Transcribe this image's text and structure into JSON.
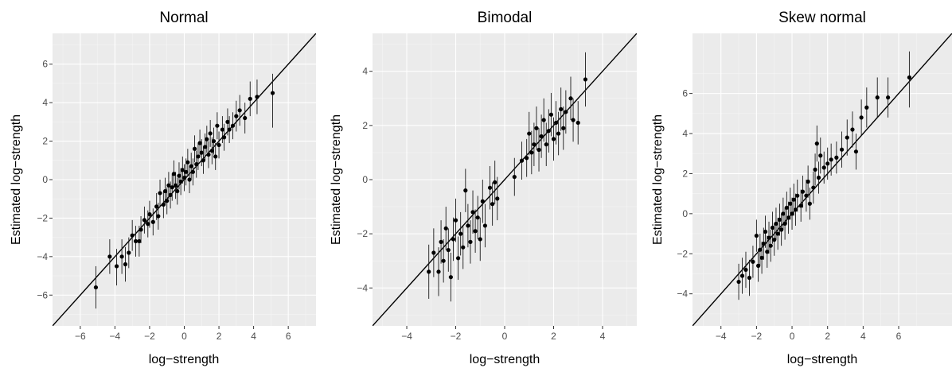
{
  "colors": {
    "panel_bg": "#ebebeb",
    "grid_major": "#ffffff",
    "grid_minor": "#f5f5f5",
    "points": "#000000",
    "errorbars": "#1a1a1a",
    "tick_text": "#4d4d4d"
  },
  "chart_data": [
    {
      "type": "scatter",
      "title": "Normal",
      "xlabel": "log−strength",
      "ylabel": "Estimated log−strength",
      "xlim": [
        -7.6,
        7.6
      ],
      "ylim": [
        -7.6,
        7.6
      ],
      "xticks": [
        -6,
        -4,
        -2,
        0,
        2,
        4,
        6
      ],
      "yticks": [
        -6,
        -4,
        -2,
        0,
        2,
        4,
        6
      ],
      "xtick_labels": [
        "−6",
        "−4",
        "−2",
        "0",
        "2",
        "4",
        "6"
      ],
      "ytick_labels": [
        "−6",
        "−4",
        "−2",
        "0",
        "2",
        "4",
        "6"
      ],
      "reference_line": "y = x",
      "grid": true,
      "points": [
        {
          "x": -5.1,
          "y": -5.6,
          "lo": -6.7,
          "hi": -4.5
        },
        {
          "x": -4.3,
          "y": -4.0,
          "lo": -4.9,
          "hi": -3.1
        },
        {
          "x": -3.9,
          "y": -4.5,
          "lo": -5.5,
          "hi": -3.6
        },
        {
          "x": -3.6,
          "y": -4.0,
          "lo": -4.9,
          "hi": -3.1
        },
        {
          "x": -3.4,
          "y": -4.4,
          "lo": -5.3,
          "hi": -3.5
        },
        {
          "x": -3.2,
          "y": -3.8,
          "lo": -4.6,
          "hi": -3.0
        },
        {
          "x": -3.0,
          "y": -2.9,
          "lo": -3.7,
          "hi": -2.1
        },
        {
          "x": -2.8,
          "y": -3.2,
          "lo": -4.0,
          "hi": -2.4
        },
        {
          "x": -2.6,
          "y": -3.2,
          "lo": -4.0,
          "hi": -2.4
        },
        {
          "x": -2.5,
          "y": -2.6,
          "lo": -3.3,
          "hi": -1.9
        },
        {
          "x": -2.3,
          "y": -2.1,
          "lo": -2.8,
          "hi": -1.4
        },
        {
          "x": -2.1,
          "y": -2.3,
          "lo": -3.0,
          "hi": -1.6
        },
        {
          "x": -2.0,
          "y": -1.8,
          "lo": -2.5,
          "hi": -1.1
        },
        {
          "x": -1.8,
          "y": -2.2,
          "lo": -2.9,
          "hi": -1.5
        },
        {
          "x": -1.6,
          "y": -1.4,
          "lo": -2.1,
          "hi": -0.7
        },
        {
          "x": -1.5,
          "y": -1.9,
          "lo": -2.6,
          "hi": -1.2
        },
        {
          "x": -1.4,
          "y": -0.7,
          "lo": -1.4,
          "hi": 0.0
        },
        {
          "x": -1.2,
          "y": -1.3,
          "lo": -2.0,
          "hi": -0.6
        },
        {
          "x": -1.1,
          "y": -0.6,
          "lo": -1.3,
          "hi": 0.1
        },
        {
          "x": -1.0,
          "y": -1.1,
          "lo": -1.8,
          "hi": -0.4
        },
        {
          "x": -0.9,
          "y": -0.3,
          "lo": -1.0,
          "hi": 0.4
        },
        {
          "x": -0.8,
          "y": -0.8,
          "lo": -1.5,
          "hi": -0.1
        },
        {
          "x": -0.7,
          "y": -0.4,
          "lo": -1.1,
          "hi": 0.3
        },
        {
          "x": -0.6,
          "y": 0.3,
          "lo": -0.4,
          "hi": 1.0
        },
        {
          "x": -0.5,
          "y": -0.3,
          "lo": -1.0,
          "hi": 0.4
        },
        {
          "x": -0.4,
          "y": -0.6,
          "lo": -1.3,
          "hi": 0.1
        },
        {
          "x": -0.3,
          "y": 0.2,
          "lo": -0.5,
          "hi": 0.9
        },
        {
          "x": -0.2,
          "y": -0.1,
          "lo": -0.8,
          "hi": 0.6
        },
        {
          "x": -0.1,
          "y": 0.5,
          "lo": -0.2,
          "hi": 1.2
        },
        {
          "x": 0.0,
          "y": 0.1,
          "lo": -0.6,
          "hi": 0.8
        },
        {
          "x": 0.1,
          "y": 0.4,
          "lo": -0.3,
          "hi": 1.1
        },
        {
          "x": 0.2,
          "y": 0.9,
          "lo": 0.2,
          "hi": 1.6
        },
        {
          "x": 0.3,
          "y": 0.0,
          "lo": -0.7,
          "hi": 0.7
        },
        {
          "x": 0.4,
          "y": 0.7,
          "lo": 0.0,
          "hi": 1.4
        },
        {
          "x": 0.5,
          "y": 0.4,
          "lo": -0.3,
          "hi": 1.1
        },
        {
          "x": 0.6,
          "y": 1.6,
          "lo": 0.9,
          "hi": 2.3
        },
        {
          "x": 0.7,
          "y": 0.8,
          "lo": 0.1,
          "hi": 1.5
        },
        {
          "x": 0.8,
          "y": 1.2,
          "lo": 0.5,
          "hi": 1.9
        },
        {
          "x": 0.9,
          "y": 1.9,
          "lo": 1.2,
          "hi": 2.6
        },
        {
          "x": 1.0,
          "y": 1.4,
          "lo": 0.7,
          "hi": 2.1
        },
        {
          "x": 1.1,
          "y": 1.0,
          "lo": 0.3,
          "hi": 1.7
        },
        {
          "x": 1.2,
          "y": 1.7,
          "lo": 1.0,
          "hi": 2.4
        },
        {
          "x": 1.3,
          "y": 2.1,
          "lo": 1.4,
          "hi": 2.8
        },
        {
          "x": 1.4,
          "y": 1.3,
          "lo": 0.6,
          "hi": 2.0
        },
        {
          "x": 1.5,
          "y": 2.4,
          "lo": 1.7,
          "hi": 3.1
        },
        {
          "x": 1.6,
          "y": 1.5,
          "lo": 0.8,
          "hi": 2.2
        },
        {
          "x": 1.7,
          "y": 2.0,
          "lo": 1.3,
          "hi": 2.7
        },
        {
          "x": 1.8,
          "y": 1.2,
          "lo": 0.5,
          "hi": 1.9
        },
        {
          "x": 1.9,
          "y": 2.8,
          "lo": 2.1,
          "hi": 3.5
        },
        {
          "x": 2.0,
          "y": 1.8,
          "lo": 1.1,
          "hi": 2.5
        },
        {
          "x": 2.2,
          "y": 2.6,
          "lo": 1.9,
          "hi": 3.3
        },
        {
          "x": 2.3,
          "y": 2.2,
          "lo": 1.5,
          "hi": 2.9
        },
        {
          "x": 2.5,
          "y": 3.0,
          "lo": 2.3,
          "hi": 3.7
        },
        {
          "x": 2.6,
          "y": 2.6,
          "lo": 1.9,
          "hi": 3.3
        },
        {
          "x": 2.8,
          "y": 2.8,
          "lo": 2.1,
          "hi": 3.5
        },
        {
          "x": 3.0,
          "y": 3.3,
          "lo": 2.5,
          "hi": 4.1
        },
        {
          "x": 3.2,
          "y": 3.6,
          "lo": 2.8,
          "hi": 4.4
        },
        {
          "x": 3.5,
          "y": 3.2,
          "lo": 2.4,
          "hi": 4.0
        },
        {
          "x": 3.8,
          "y": 4.2,
          "lo": 3.3,
          "hi": 5.1
        },
        {
          "x": 4.2,
          "y": 4.3,
          "lo": 3.4,
          "hi": 5.2
        },
        {
          "x": 5.1,
          "y": 4.5,
          "lo": 2.7,
          "hi": 5.5
        }
      ]
    },
    {
      "type": "scatter",
      "title": "Bimodal",
      "xlabel": "log−strength",
      "ylabel": "Estimated log−strength",
      "xlim": [
        -5.4,
        5.4
      ],
      "ylim": [
        -5.4,
        5.4
      ],
      "xticks": [
        -4,
        -2,
        0,
        2,
        4
      ],
      "yticks": [
        -4,
        -2,
        0,
        2,
        4
      ],
      "xtick_labels": [
        "−4",
        "−2",
        "0",
        "2",
        "4"
      ],
      "ytick_labels": [
        "−4",
        "−2",
        "0",
        "2",
        "4"
      ],
      "reference_line": "y = x",
      "grid": true,
      "points": [
        {
          "x": -3.1,
          "y": -3.4,
          "lo": -4.4,
          "hi": -2.4
        },
        {
          "x": -2.9,
          "y": -2.7,
          "lo": -3.6,
          "hi": -1.8
        },
        {
          "x": -2.7,
          "y": -3.4,
          "lo": -4.3,
          "hi": -2.5
        },
        {
          "x": -2.6,
          "y": -2.3,
          "lo": -3.1,
          "hi": -1.5
        },
        {
          "x": -2.5,
          "y": -3.0,
          "lo": -3.8,
          "hi": -2.2
        },
        {
          "x": -2.4,
          "y": -1.8,
          "lo": -2.6,
          "hi": -1.0
        },
        {
          "x": -2.3,
          "y": -2.6,
          "lo": -3.4,
          "hi": -1.8
        },
        {
          "x": -2.2,
          "y": -3.6,
          "lo": -4.5,
          "hi": -2.7
        },
        {
          "x": -2.1,
          "y": -2.2,
          "lo": -3.0,
          "hi": -1.4
        },
        {
          "x": -2.0,
          "y": -1.5,
          "lo": -2.3,
          "hi": -0.7
        },
        {
          "x": -1.9,
          "y": -2.9,
          "lo": -3.7,
          "hi": -2.1
        },
        {
          "x": -1.8,
          "y": -2.0,
          "lo": -2.8,
          "hi": -1.2
        },
        {
          "x": -1.7,
          "y": -2.5,
          "lo": -3.3,
          "hi": -1.7
        },
        {
          "x": -1.6,
          "y": -0.4,
          "lo": -1.2,
          "hi": 0.4
        },
        {
          "x": -1.5,
          "y": -1.7,
          "lo": -2.5,
          "hi": -0.9
        },
        {
          "x": -1.4,
          "y": -2.3,
          "lo": -3.1,
          "hi": -1.5
        },
        {
          "x": -1.3,
          "y": -1.2,
          "lo": -2.0,
          "hi": -0.4
        },
        {
          "x": -1.2,
          "y": -1.9,
          "lo": -2.7,
          "hi": -1.1
        },
        {
          "x": -1.1,
          "y": -1.4,
          "lo": -2.2,
          "hi": -0.6
        },
        {
          "x": -1.0,
          "y": -2.2,
          "lo": -3.0,
          "hi": -1.4
        },
        {
          "x": -0.9,
          "y": -0.8,
          "lo": -1.6,
          "hi": 0.0
        },
        {
          "x": -0.8,
          "y": -1.7,
          "lo": -2.5,
          "hi": -0.9
        },
        {
          "x": -0.6,
          "y": -0.3,
          "lo": -1.1,
          "hi": 0.5
        },
        {
          "x": -0.5,
          "y": -0.9,
          "lo": -1.7,
          "hi": -0.1
        },
        {
          "x": -0.4,
          "y": -0.1,
          "lo": -0.9,
          "hi": 0.7
        },
        {
          "x": -0.3,
          "y": -0.7,
          "lo": -1.5,
          "hi": 0.1
        },
        {
          "x": 0.4,
          "y": 0.1,
          "lo": -0.6,
          "hi": 0.8
        },
        {
          "x": 0.7,
          "y": 0.7,
          "lo": 0.0,
          "hi": 1.4
        },
        {
          "x": 0.9,
          "y": 0.8,
          "lo": 0.1,
          "hi": 1.5
        },
        {
          "x": 1.0,
          "y": 1.7,
          "lo": 0.9,
          "hi": 2.5
        },
        {
          "x": 1.1,
          "y": 1.0,
          "lo": 0.2,
          "hi": 1.8
        },
        {
          "x": 1.2,
          "y": 1.3,
          "lo": 0.5,
          "hi": 2.1
        },
        {
          "x": 1.3,
          "y": 1.9,
          "lo": 1.1,
          "hi": 2.7
        },
        {
          "x": 1.4,
          "y": 1.1,
          "lo": 0.3,
          "hi": 1.9
        },
        {
          "x": 1.5,
          "y": 1.6,
          "lo": 0.8,
          "hi": 2.4
        },
        {
          "x": 1.6,
          "y": 2.2,
          "lo": 1.4,
          "hi": 3.0
        },
        {
          "x": 1.7,
          "y": 1.3,
          "lo": 0.5,
          "hi": 2.1
        },
        {
          "x": 1.8,
          "y": 1.8,
          "lo": 1.0,
          "hi": 2.6
        },
        {
          "x": 1.9,
          "y": 2.4,
          "lo": 1.6,
          "hi": 3.2
        },
        {
          "x": 2.0,
          "y": 1.5,
          "lo": 0.7,
          "hi": 2.3
        },
        {
          "x": 2.1,
          "y": 2.1,
          "lo": 1.3,
          "hi": 2.9
        },
        {
          "x": 2.2,
          "y": 1.7,
          "lo": 0.9,
          "hi": 2.5
        },
        {
          "x": 2.3,
          "y": 2.6,
          "lo": 1.8,
          "hi": 3.4
        },
        {
          "x": 2.4,
          "y": 1.9,
          "lo": 1.1,
          "hi": 2.7
        },
        {
          "x": 2.5,
          "y": 2.5,
          "lo": 1.7,
          "hi": 3.3
        },
        {
          "x": 2.7,
          "y": 3.0,
          "lo": 2.2,
          "hi": 3.8
        },
        {
          "x": 2.8,
          "y": 2.2,
          "lo": 1.4,
          "hi": 3.0
        },
        {
          "x": 3.0,
          "y": 2.1,
          "lo": 1.3,
          "hi": 2.9
        },
        {
          "x": 3.3,
          "y": 3.7,
          "lo": 2.7,
          "hi": 4.7
        }
      ]
    },
    {
      "type": "scatter",
      "title": "Skew normal",
      "xlabel": "log−strength",
      "ylabel": "Estimated log−strength",
      "xlim": [
        -5.6,
        9.0
      ],
      "ylim": [
        -5.6,
        9.0
      ],
      "xticks": [
        -4,
        -2,
        0,
        2,
        4,
        6
      ],
      "yticks": [
        -4,
        -2,
        0,
        2,
        4,
        6
      ],
      "xtick_labels": [
        "−4",
        "−2",
        "0",
        "2",
        "4",
        "6"
      ],
      "ytick_labels": [
        "−4",
        "−2",
        "0",
        "2",
        "4",
        "6"
      ],
      "reference_line": "y = x",
      "grid": true,
      "points": [
        {
          "x": -3.0,
          "y": -3.4,
          "lo": -4.3,
          "hi": -2.5
        },
        {
          "x": -2.8,
          "y": -3.1,
          "lo": -4.0,
          "hi": -2.2
        },
        {
          "x": -2.6,
          "y": -2.8,
          "lo": -3.7,
          "hi": -1.9
        },
        {
          "x": -2.4,
          "y": -3.2,
          "lo": -4.1,
          "hi": -2.3
        },
        {
          "x": -2.2,
          "y": -2.4,
          "lo": -3.2,
          "hi": -1.6
        },
        {
          "x": -2.0,
          "y": -1.1,
          "lo": -1.9,
          "hi": -0.3
        },
        {
          "x": -1.9,
          "y": -2.6,
          "lo": -3.4,
          "hi": -1.8
        },
        {
          "x": -1.8,
          "y": -1.8,
          "lo": -2.6,
          "hi": -1.0
        },
        {
          "x": -1.7,
          "y": -2.2,
          "lo": -3.0,
          "hi": -1.4
        },
        {
          "x": -1.6,
          "y": -1.5,
          "lo": -2.3,
          "hi": -0.7
        },
        {
          "x": -1.5,
          "y": -0.9,
          "lo": -1.7,
          "hi": -0.1
        },
        {
          "x": -1.4,
          "y": -1.9,
          "lo": -2.7,
          "hi": -1.1
        },
        {
          "x": -1.3,
          "y": -1.2,
          "lo": -2.0,
          "hi": -0.4
        },
        {
          "x": -1.2,
          "y": -1.6,
          "lo": -2.4,
          "hi": -0.8
        },
        {
          "x": -1.1,
          "y": -0.7,
          "lo": -1.5,
          "hi": 0.1
        },
        {
          "x": -1.0,
          "y": -1.3,
          "lo": -2.1,
          "hi": -0.5
        },
        {
          "x": -0.9,
          "y": -0.5,
          "lo": -1.3,
          "hi": 0.3
        },
        {
          "x": -0.8,
          "y": -1.0,
          "lo": -1.8,
          "hi": -0.2
        },
        {
          "x": -0.7,
          "y": -0.3,
          "lo": -1.1,
          "hi": 0.5
        },
        {
          "x": -0.6,
          "y": -0.8,
          "lo": -1.6,
          "hi": 0.0
        },
        {
          "x": -0.5,
          "y": 0.0,
          "lo": -0.8,
          "hi": 0.8
        },
        {
          "x": -0.4,
          "y": -0.5,
          "lo": -1.3,
          "hi": 0.3
        },
        {
          "x": -0.3,
          "y": 0.3,
          "lo": -0.5,
          "hi": 1.1
        },
        {
          "x": -0.2,
          "y": -0.2,
          "lo": -1.0,
          "hi": 0.6
        },
        {
          "x": -0.1,
          "y": 0.5,
          "lo": -0.3,
          "hi": 1.3
        },
        {
          "x": 0.0,
          "y": 0.0,
          "lo": -0.8,
          "hi": 0.8
        },
        {
          "x": 0.1,
          "y": 0.7,
          "lo": -0.1,
          "hi": 1.5
        },
        {
          "x": 0.2,
          "y": 0.2,
          "lo": -0.6,
          "hi": 1.0
        },
        {
          "x": 0.3,
          "y": 0.9,
          "lo": 0.1,
          "hi": 1.7
        },
        {
          "x": 0.5,
          "y": 0.4,
          "lo": -0.4,
          "hi": 1.2
        },
        {
          "x": 0.6,
          "y": 1.1,
          "lo": 0.3,
          "hi": 1.9
        },
        {
          "x": 0.8,
          "y": 0.9,
          "lo": 0.1,
          "hi": 1.7
        },
        {
          "x": 0.9,
          "y": 1.6,
          "lo": 0.8,
          "hi": 2.4
        },
        {
          "x": 1.0,
          "y": 0.5,
          "lo": -0.3,
          "hi": 1.3
        },
        {
          "x": 1.2,
          "y": 1.3,
          "lo": 0.5,
          "hi": 2.1
        },
        {
          "x": 1.3,
          "y": 2.2,
          "lo": 1.4,
          "hi": 3.0
        },
        {
          "x": 1.4,
          "y": 3.5,
          "lo": 2.6,
          "hi": 4.4
        },
        {
          "x": 1.5,
          "y": 1.8,
          "lo": 1.0,
          "hi": 2.6
        },
        {
          "x": 1.6,
          "y": 2.9,
          "lo": 2.0,
          "hi": 3.8
        },
        {
          "x": 1.8,
          "y": 2.3,
          "lo": 1.5,
          "hi": 3.1
        },
        {
          "x": 2.0,
          "y": 2.5,
          "lo": 1.7,
          "hi": 3.3
        },
        {
          "x": 2.2,
          "y": 2.7,
          "lo": 1.9,
          "hi": 3.5
        },
        {
          "x": 2.5,
          "y": 2.8,
          "lo": 2.0,
          "hi": 3.6
        },
        {
          "x": 2.8,
          "y": 3.2,
          "lo": 2.3,
          "hi": 4.1
        },
        {
          "x": 3.1,
          "y": 3.8,
          "lo": 2.9,
          "hi": 4.7
        },
        {
          "x": 3.4,
          "y": 4.2,
          "lo": 3.3,
          "hi": 5.1
        },
        {
          "x": 3.6,
          "y": 3.1,
          "lo": 2.2,
          "hi": 4.0
        },
        {
          "x": 3.9,
          "y": 4.8,
          "lo": 3.9,
          "hi": 5.7
        },
        {
          "x": 4.2,
          "y": 5.3,
          "lo": 4.3,
          "hi": 6.3
        },
        {
          "x": 4.8,
          "y": 5.8,
          "lo": 4.8,
          "hi": 6.8
        },
        {
          "x": 5.4,
          "y": 5.8,
          "lo": 4.8,
          "hi": 6.8
        },
        {
          "x": 6.6,
          "y": 6.8,
          "lo": 5.3,
          "hi": 8.1
        }
      ]
    }
  ]
}
